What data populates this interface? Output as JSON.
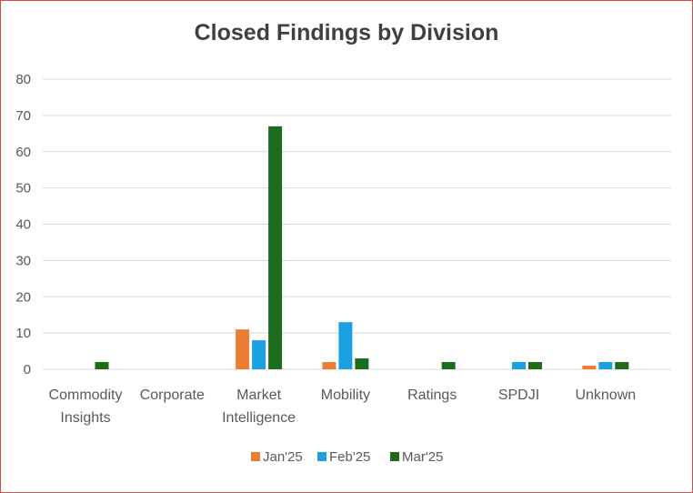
{
  "chart_data": {
    "type": "bar",
    "title": "Closed Findings by Division",
    "xlabel": "",
    "ylabel": "",
    "ylim": [
      0,
      80
    ],
    "yticks": [
      "0",
      "10",
      "20",
      "30",
      "40",
      "50",
      "60",
      "70",
      "80"
    ],
    "categories": [
      [
        "Commodity",
        "Insights"
      ],
      [
        "Corporate"
      ],
      [
        "Market",
        "Intelligence"
      ],
      [
        "Mobility"
      ],
      [
        "Ratings"
      ],
      [
        "SPDJI"
      ],
      [
        "Unknown"
      ]
    ],
    "series": [
      {
        "name": "Jan'25",
        "color": "#ed7d31",
        "values": [
          0,
          0,
          11,
          2,
          0,
          0,
          1
        ]
      },
      {
        "name": "Feb'25",
        "color": "#1ba1e2",
        "values": [
          0,
          0,
          8,
          13,
          0,
          2,
          2
        ]
      },
      {
        "name": "Mar'25",
        "color": "#1e6b1e",
        "values": [
          2,
          0,
          67,
          3,
          2,
          2,
          2
        ]
      }
    ],
    "grid": true,
    "legend_position": "bottom"
  }
}
